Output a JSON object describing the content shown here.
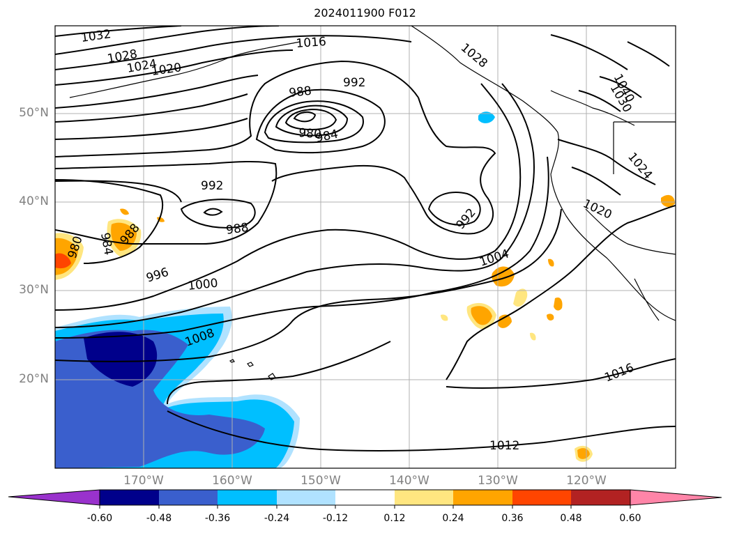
{
  "title": "2024011900 F012",
  "lat_labels": [
    "50°N",
    "40°N",
    "30°N",
    "20°N"
  ],
  "lon_labels": [
    "170°W",
    "160°W",
    "150°W",
    "140°W",
    "130°W",
    "120°W"
  ],
  "contour_labels": [
    "1032",
    "1028",
    "1024",
    "1020",
    "1016",
    "988",
    "992",
    "980",
    "984",
    "992",
    "988",
    "984",
    "980",
    "988",
    "992",
    "1004",
    "996",
    "1000",
    "1008",
    "1016",
    "1012",
    "1020",
    "1024",
    "1028",
    "1030",
    "1040"
  ],
  "colorbar": {
    "ticks": [
      "-0.60",
      "-0.48",
      "-0.36",
      "-0.24",
      "-0.12",
      "0.12",
      "0.24",
      "0.36",
      "0.48",
      "0.60"
    ],
    "colors": {
      "under": "#9932cc",
      "b1": "#00008b",
      "b2": "#3a5fcd",
      "b3": "#00bfff",
      "b4": "#b0e2ff",
      "b5": "#ffffff",
      "b6": "#ffe680",
      "b7": "#ffa500",
      "b8": "#ff4500",
      "b9": "#b22222",
      "over": "#ff85a8"
    }
  }
}
